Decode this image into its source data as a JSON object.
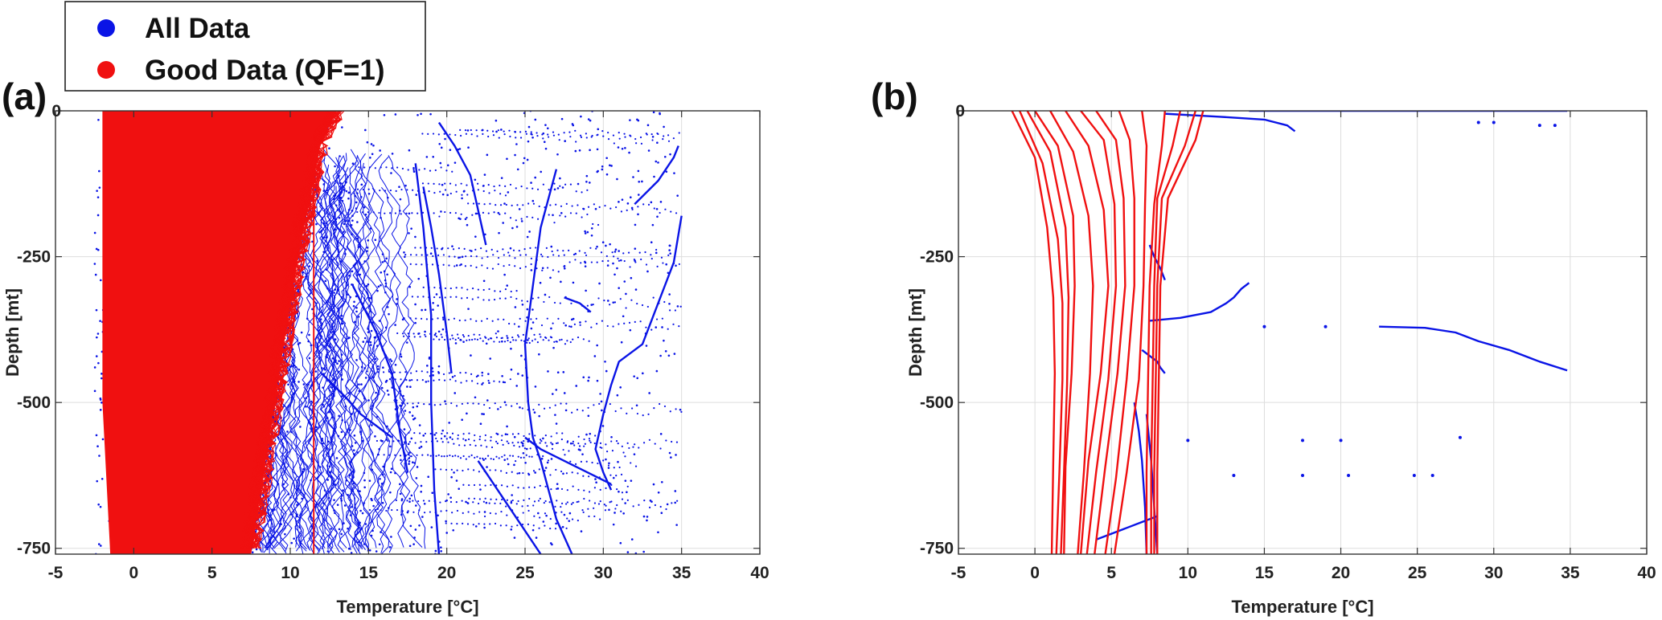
{
  "legend": {
    "items": [
      {
        "label": "All Data",
        "color": "#0a14e6"
      },
      {
        "label": "Good Data (QF=1)",
        "color": "#f01010"
      }
    ]
  },
  "chart_data": [
    {
      "panel_label": "(a)",
      "type": "scatter",
      "xlabel": "Temperature [°C]",
      "ylabel": "Depth [mt]",
      "xlim": [
        -5,
        40
      ],
      "ylim": [
        -760,
        0
      ],
      "xticks": [
        -5,
        0,
        5,
        10,
        15,
        20,
        25,
        30,
        35,
        40
      ],
      "yticks": [
        0,
        -250,
        -500,
        -750
      ],
      "grid": true,
      "series": [
        {
          "name": "All Data",
          "color": "#0a14e6",
          "style": "dense-scatter",
          "envelope": {
            "depth": [
              0,
              -250,
              -500,
              -760
            ],
            "t_min": [
              -2.5,
              -2.5,
              -2.5,
              -2.5
            ],
            "t_max": [
              12,
              16,
              18,
              20
            ]
          },
          "profiles": [
            {
              "x": [
                19.5,
                20.5,
                21.5,
                22,
                22.5
              ],
              "y": [
                -20,
                -60,
                -110,
                -170,
                -230
              ]
            },
            {
              "x": [
                18,
                18.5,
                19,
                19,
                19.2,
                19.5
              ],
              "y": [
                -90,
                -200,
                -350,
                -500,
                -650,
                -760
              ]
            },
            {
              "x": [
                32,
                33.5,
                34.5,
                34.8
              ],
              "y": [
                -160,
                -120,
                -80,
                -60
              ]
            },
            {
              "x": [
                27,
                26,
                25.5,
                25,
                25.2,
                25.5,
                26,
                27,
                28
              ],
              "y": [
                -100,
                -200,
                -300,
                -400,
                -500,
                -560,
                -600,
                -700,
                -760
              ]
            },
            {
              "x": [
                35,
                34.5,
                33.5,
                32.5,
                31,
                30.5,
                30,
                29.5,
                30,
                30.5
              ],
              "y": [
                -180,
                -260,
                -330,
                -400,
                -430,
                -470,
                -520,
                -580,
                -620,
                -650
              ]
            },
            {
              "x": [
                14,
                15.5,
                16.5,
                17,
                17.5
              ],
              "y": [
                -300,
                -380,
                -450,
                -550,
                -620
              ]
            },
            {
              "x": [
                25,
                26,
                27.5,
                29,
                30.5
              ],
              "y": [
                -560,
                -580,
                -600,
                -620,
                -640
              ]
            },
            {
              "x": [
                22,
                23,
                24,
                25,
                26
              ],
              "y": [
                -600,
                -640,
                -680,
                -720,
                -760
              ]
            },
            {
              "x": [
                18.5,
                19,
                19.5,
                20,
                20.3
              ],
              "y": [
                -130,
                -200,
                -280,
                -380,
                -450
              ]
            },
            {
              "x": [
                27.5,
                28.5,
                29.2
              ],
              "y": [
                -320,
                -330,
                -345
              ]
            },
            {
              "x": [
                12,
                13.5,
                14.5,
                15.5,
                16.5
              ],
              "y": [
                -450,
                -490,
                -520,
                -540,
                -560
              ]
            }
          ]
        },
        {
          "name": "Good Data (QF=1)",
          "color": "#f01010",
          "style": "dense-lines",
          "envelope": {
            "depth": [
              0,
              -50,
              -250,
              -500,
              -760
            ],
            "t_min": [
              -2,
              -2,
              -2,
              -2,
              -1.5
            ],
            "t_max": [
              13,
              12,
              10.5,
              9,
              7.5
            ]
          }
        }
      ]
    },
    {
      "panel_label": "(b)",
      "type": "line",
      "xlabel": "Temperature [°C]",
      "ylabel": "Depth [mt]",
      "xlim": [
        -5,
        40
      ],
      "ylim": [
        -760,
        0
      ],
      "xticks": [
        -5,
        0,
        5,
        10,
        15,
        20,
        25,
        30,
        35,
        40
      ],
      "yticks": [
        0,
        -250,
        -500,
        -750
      ],
      "grid": true,
      "series": [
        {
          "name": "All Data",
          "color": "#0a14e6",
          "profiles": [
            {
              "x": [
                8.5,
                12,
                15,
                16.5,
                17
              ],
              "y": [
                -5,
                -10,
                -15,
                -25,
                -35
              ]
            },
            {
              "x": [
                14,
                20,
                25,
                30,
                34.8
              ],
              "y": [
                0,
                0,
                0,
                0,
                0
              ]
            },
            {
              "x": [
                22.5,
                25.5,
                27.5,
                29,
                31,
                33,
                34.8
              ],
              "y": [
                -370,
                -372,
                -380,
                -395,
                -410,
                -430,
                -445
              ]
            },
            {
              "x": [
                7.5,
                9.5,
                11.5,
                12.5,
                13,
                13.5,
                14
              ],
              "y": [
                -360,
                -355,
                -345,
                -330,
                -320,
                -305,
                -295
              ]
            },
            {
              "x": [
                7,
                7.5,
                8,
                8.2,
                8.5
              ],
              "y": [
                -410,
                -420,
                -430,
                -440,
                -450
              ]
            },
            {
              "x": [
                6.5,
                6.8,
                7,
                7.2,
                7.3
              ],
              "y": [
                -500,
                -550,
                -600,
                -680,
                -760
              ]
            },
            {
              "x": [
                7.3,
                7.6,
                7.8,
                8
              ],
              "y": [
                -520,
                -600,
                -680,
                -760
              ]
            },
            {
              "x": [
                7.5,
                7.8,
                8.2,
                8.5
              ],
              "y": [
                -230,
                -250,
                -270,
                -290
              ]
            },
            {
              "x": [
                4,
                5,
                6,
                7,
                8
              ],
              "y": [
                -735,
                -725,
                -715,
                -705,
                -695
              ]
            }
          ],
          "points": [
            {
              "x": 17.5,
              "y": -565
            },
            {
              "x": 20,
              "y": -565
            },
            {
              "x": 27.8,
              "y": -560
            },
            {
              "x": 17.5,
              "y": -625
            },
            {
              "x": 13,
              "y": -625
            },
            {
              "x": 20.5,
              "y": -625
            },
            {
              "x": 24.8,
              "y": -625
            },
            {
              "x": 26,
              "y": -625
            },
            {
              "x": 15,
              "y": -370
            },
            {
              "x": 19,
              "y": -370
            },
            {
              "x": 10,
              "y": -565
            },
            {
              "x": 29,
              "y": -20
            },
            {
              "x": 30,
              "y": -20
            },
            {
              "x": 33,
              "y": -25
            },
            {
              "x": 34,
              "y": -25
            }
          ]
        },
        {
          "name": "Good Data (QF=1)",
          "color": "#f01010",
          "profiles": [
            {
              "x": [
                -1.5,
                0,
                0.8,
                1.2,
                1.3,
                1.2,
                1.1
              ],
              "y": [
                0,
                -80,
                -200,
                -320,
                -450,
                -600,
                -760
              ]
            },
            {
              "x": [
                -1.0,
                0.5,
                1.5,
                1.8,
                1.8,
                1.6,
                1.4
              ],
              "y": [
                0,
                -90,
                -220,
                -330,
                -460,
                -620,
                -760
              ]
            },
            {
              "x": [
                -0.5,
                1,
                2,
                2.2,
                2.1,
                1.9,
                1.7
              ],
              "y": [
                0,
                -70,
                -200,
                -320,
                -470,
                -620,
                -760
              ]
            },
            {
              "x": [
                0,
                1.5,
                2.5,
                2.6,
                2.4,
                2.0,
                1.9
              ],
              "y": [
                0,
                -60,
                -180,
                -300,
                -450,
                -610,
                -760
              ]
            },
            {
              "x": [
                1,
                2.5,
                3.5,
                3.8,
                3.6,
                3.2,
                2.8
              ],
              "y": [
                0,
                -70,
                -180,
                -300,
                -450,
                -620,
                -760
              ]
            },
            {
              "x": [
                2,
                3.5,
                4.5,
                4.8,
                4.3,
                3.5,
                3.0
              ],
              "y": [
                0,
                -60,
                -170,
                -300,
                -450,
                -600,
                -760
              ]
            },
            {
              "x": [
                3,
                4.5,
                5.2,
                5.3,
                4.8,
                4.0,
                3.4
              ],
              "y": [
                0,
                -50,
                -160,
                -300,
                -460,
                -620,
                -760
              ]
            },
            {
              "x": [
                4,
                5.3,
                5.8,
                5.9,
                5.4,
                4.6,
                3.9
              ],
              "y": [
                0,
                -50,
                -150,
                -300,
                -450,
                -610,
                -760
              ]
            },
            {
              "x": [
                5.5,
                6.2,
                6.5,
                6.5,
                6.0,
                5.3,
                4.6
              ],
              "y": [
                0,
                -50,
                -150,
                -300,
                -460,
                -630,
                -760
              ]
            },
            {
              "x": [
                7,
                7.3,
                7.2,
                7.1,
                6.8,
                6.0,
                5.2
              ],
              "y": [
                0,
                -60,
                -160,
                -300,
                -460,
                -620,
                -760
              ]
            },
            {
              "x": [
                8.5,
                8.3,
                7.8,
                7.5,
                7.4,
                7.3,
                7.3
              ],
              "y": [
                0,
                -60,
                -160,
                -300,
                -460,
                -620,
                -760
              ]
            },
            {
              "x": [
                9.5,
                9.0,
                8.0,
                7.8,
                7.7,
                7.6,
                7.6
              ],
              "y": [
                0,
                -60,
                -150,
                -300,
                -460,
                -620,
                -760
              ]
            },
            {
              "x": [
                10.5,
                9.8,
                8.3,
                8.0,
                7.9,
                7.8,
                7.8
              ],
              "y": [
                0,
                -60,
                -150,
                -300,
                -460,
                -620,
                -760
              ]
            },
            {
              "x": [
                11,
                10.5,
                8.7,
                8.2,
                8.1,
                8.0,
                8.0
              ],
              "y": [
                0,
                -50,
                -150,
                -300,
                -460,
                -620,
                -760
              ]
            }
          ]
        }
      ]
    }
  ]
}
